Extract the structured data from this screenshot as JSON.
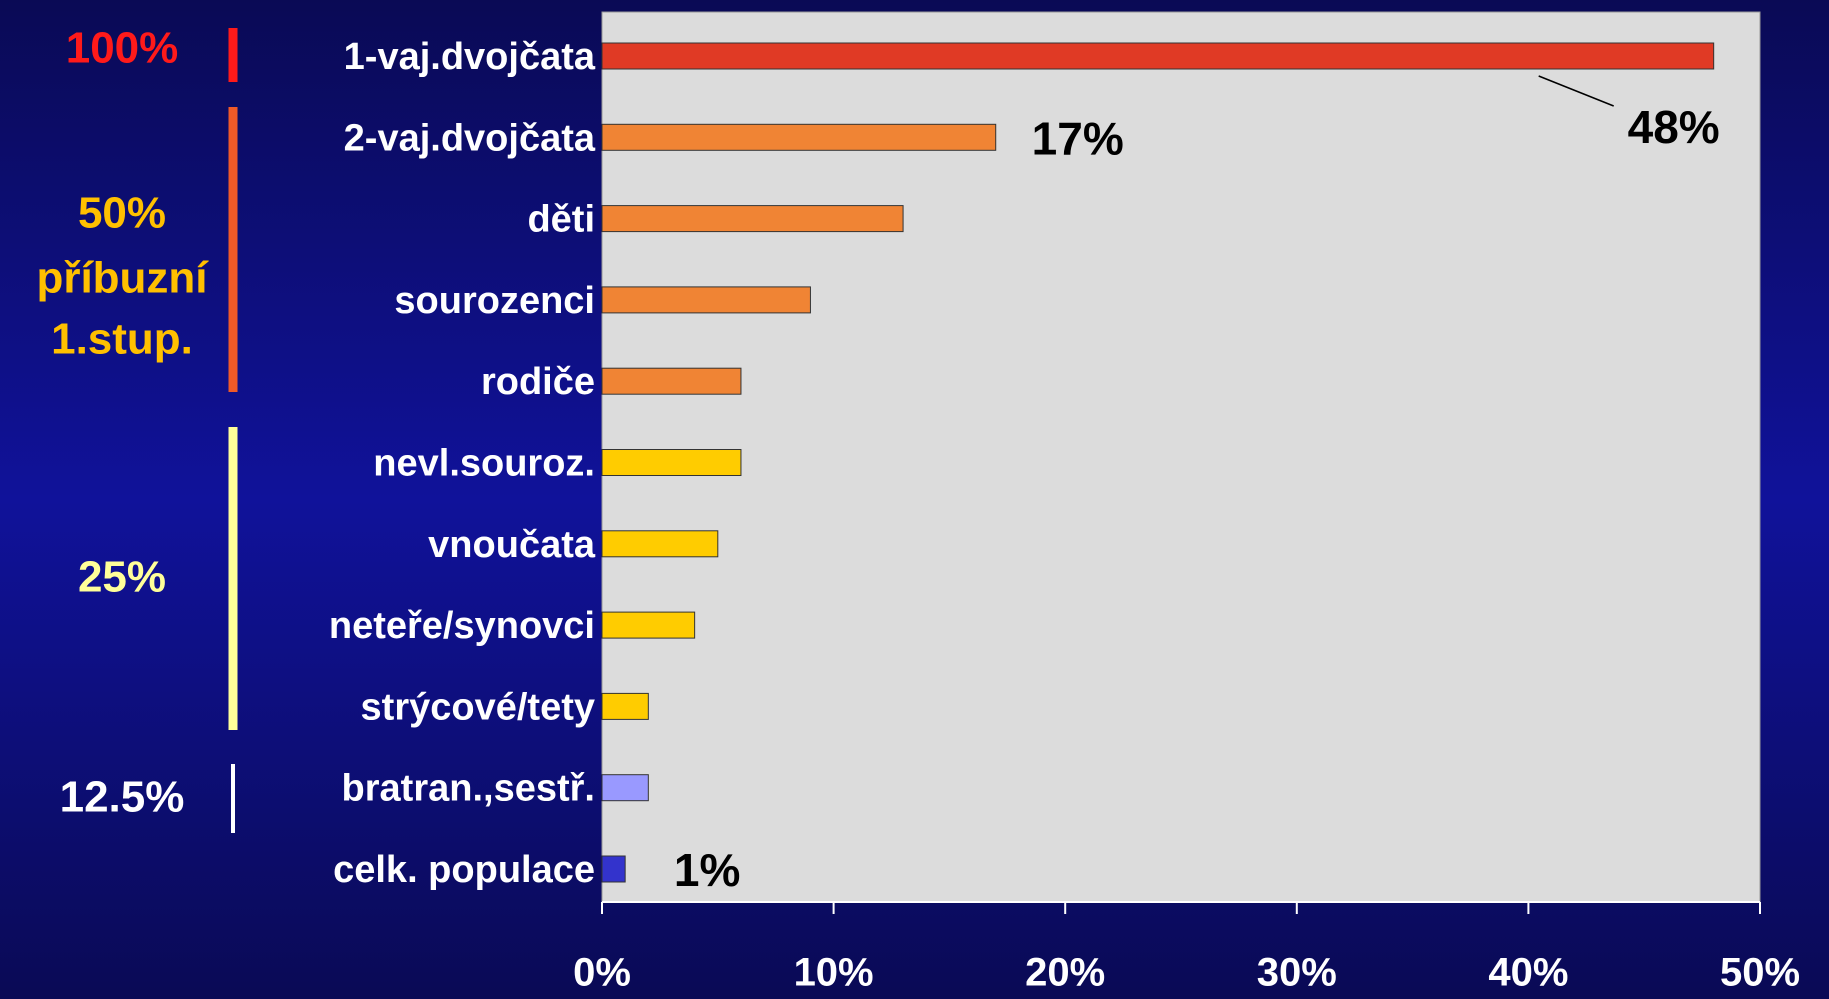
{
  "chart_data": {
    "type": "barh",
    "categories": [
      "1-vaj.dvojčata",
      "2-vaj.dvojčata",
      "děti",
      "sourozenci",
      "rodiče",
      "nevl.souroz.",
      "vnoučata",
      "neteře/synovci",
      "strýcové/tety",
      "bratran.,sestř.",
      "celk. populace"
    ],
    "values": [
      48,
      17,
      13,
      9,
      6,
      6,
      5,
      4,
      2,
      2,
      1
    ],
    "value_labels": [
      "48%",
      "17%",
      null,
      null,
      null,
      null,
      null,
      null,
      null,
      null,
      "1%"
    ],
    "colors": [
      "#e03a25",
      "#f08434",
      "#f08434",
      "#f08434",
      "#f08434",
      "#ffcc00",
      "#ffcc00",
      "#ffcc00",
      "#ffcc00",
      "#9999ff",
      "#3333cc"
    ],
    "xlim": [
      0,
      50
    ],
    "xticks": [
      {
        "value": 0,
        "label": "0%"
      },
      {
        "value": 10,
        "label": "10%"
      },
      {
        "value": 20,
        "label": "20%"
      },
      {
        "value": 30,
        "label": "30%"
      },
      {
        "value": 40,
        "label": "40%"
      },
      {
        "value": 50,
        "label": "50%"
      }
    ],
    "groups": [
      {
        "label_lines": [
          "100%"
        ],
        "color": "#ff1a1a",
        "bar_color": "#ff1a1a"
      },
      {
        "label_lines": [
          "50%",
          "příbuzní",
          "1.stup."
        ],
        "color": "#ffc000",
        "bar_color": "#f05a28"
      },
      {
        "label_lines": [
          "25%"
        ],
        "color": "#ffff99",
        "bar_color": "#ffff99"
      },
      {
        "label_lines": [
          "12.5%"
        ],
        "color": "#ffffff",
        "bar_color": "#ffffff"
      }
    ]
  }
}
